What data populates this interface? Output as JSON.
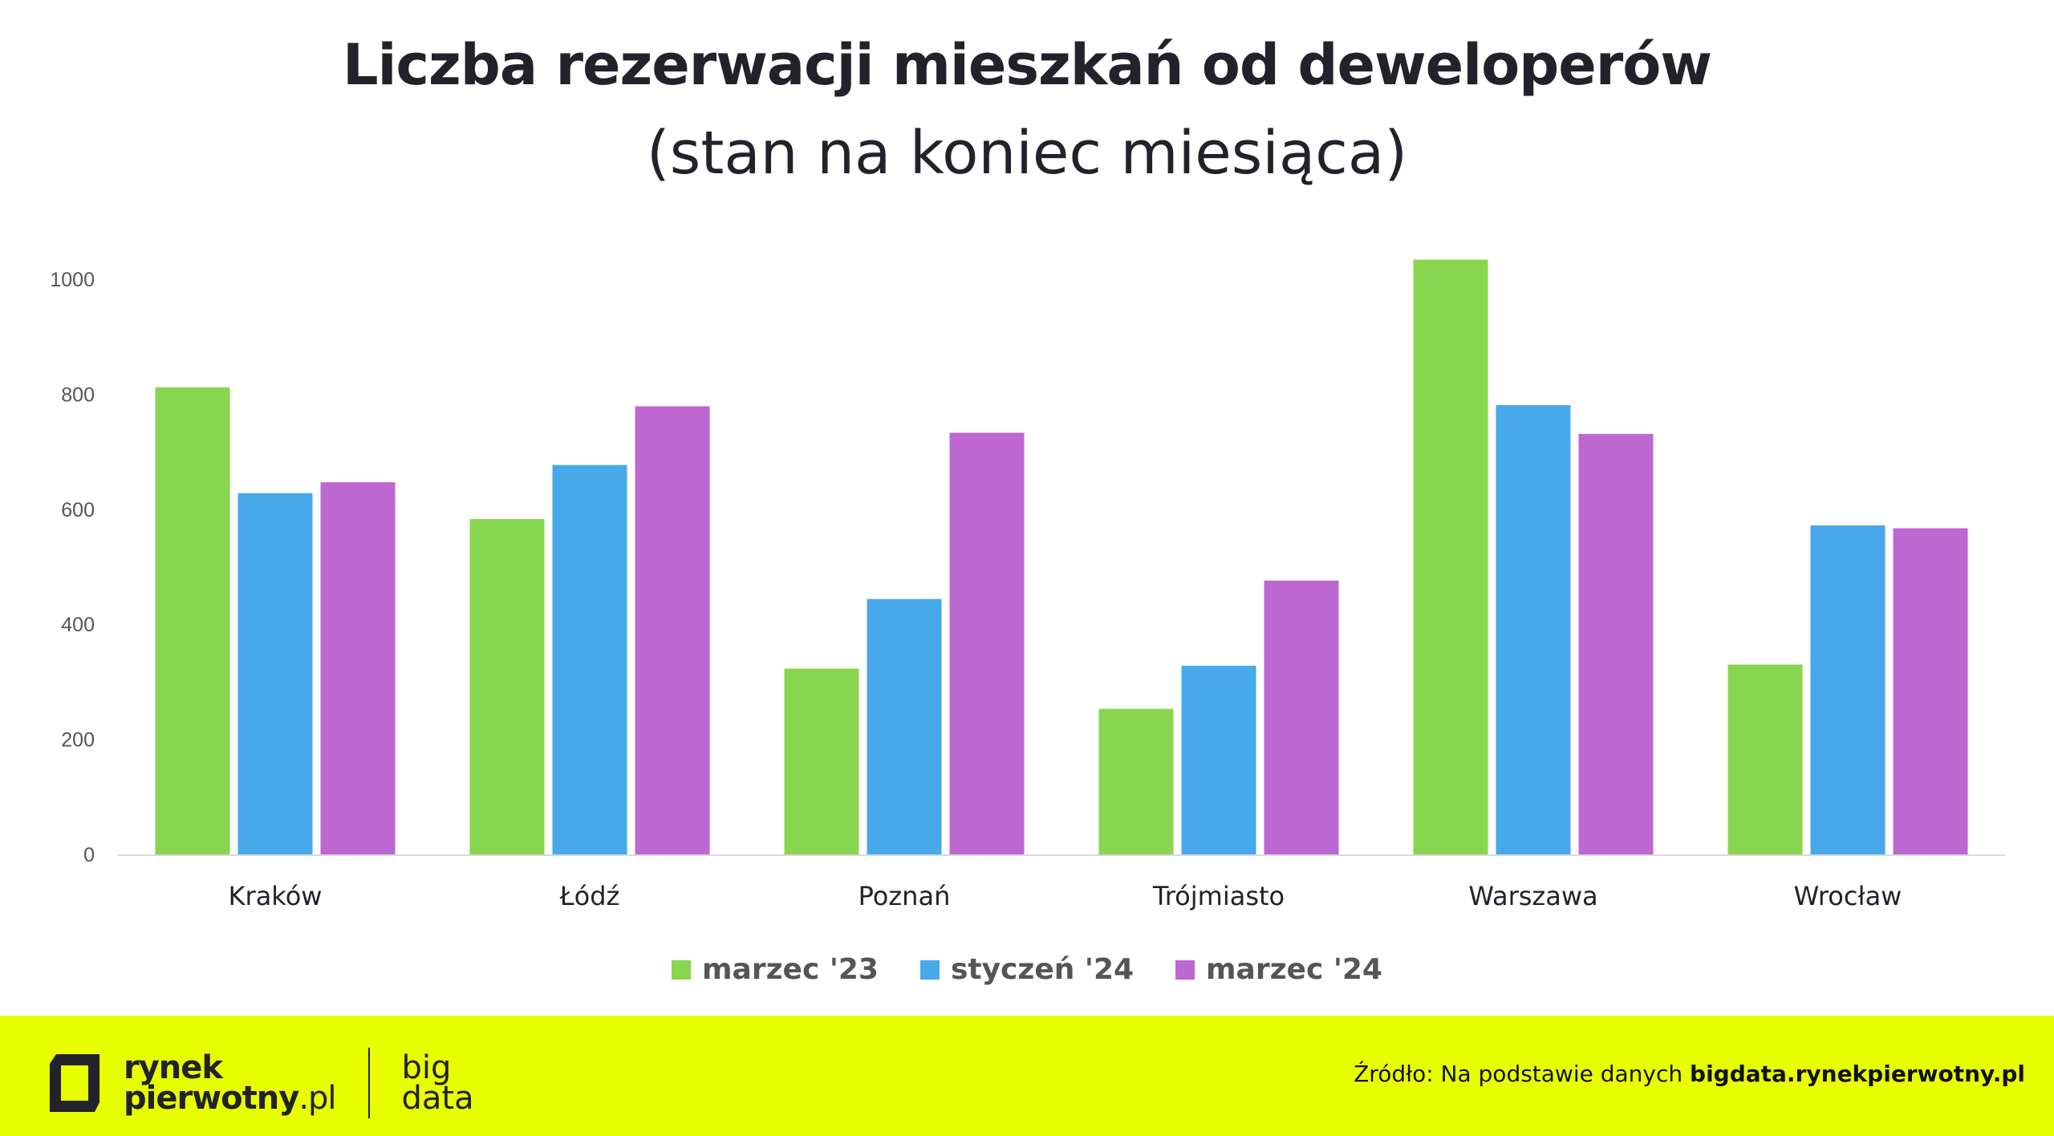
{
  "chart_data": {
    "type": "bar",
    "title": "Liczba rezerwacji mieszkań od deweloperów",
    "subtitle": "(stan na koniec miesiąca)",
    "categories": [
      "Kraków",
      "Łódź",
      "Poznań",
      "Trójmiasto",
      "Warszawa",
      "Wrocław"
    ],
    "series": [
      {
        "name": "marzec '23",
        "color": "#88d64f",
        "values": [
          812,
          583,
          323,
          253,
          1034,
          330
        ]
      },
      {
        "name": "styczeń '24",
        "color": "#48a9ea",
        "values": [
          628,
          677,
          444,
          328,
          781,
          572
        ]
      },
      {
        "name": "marzec '24",
        "color": "#bd67d1",
        "values": [
          647,
          779,
          733,
          476,
          731,
          567
        ]
      }
    ],
    "yticks": [
      0,
      200,
      400,
      600,
      800,
      1000
    ],
    "ylim": [
      0,
      1000
    ],
    "xlabel": "",
    "ylabel": "",
    "grid": false,
    "legend": "bottom"
  },
  "footer": {
    "logo_line1": "rynek",
    "logo_line2": "pierwotny",
    "logo_suffix": ".pl",
    "big_line1": "big",
    "big_line2": "data",
    "source_prefix": "Źródło: Na podstawie danych ",
    "source_link": "bigdata.rynekpierwotny.pl",
    "accent": "#e8ff00"
  }
}
